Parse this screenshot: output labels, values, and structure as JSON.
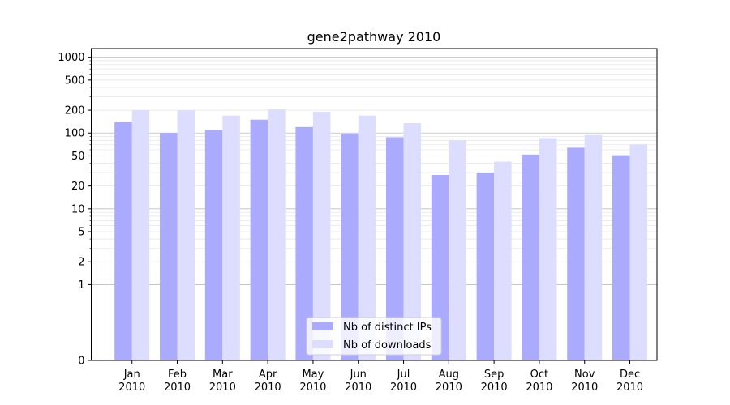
{
  "chart_data": {
    "type": "bar",
    "title": "gene2pathway 2010",
    "categories": [
      [
        "Jan",
        "2010"
      ],
      [
        "Feb",
        "2010"
      ],
      [
        "Mar",
        "2010"
      ],
      [
        "Apr",
        "2010"
      ],
      [
        "May",
        "2010"
      ],
      [
        "Jun",
        "2010"
      ],
      [
        "Jul",
        "2010"
      ],
      [
        "Aug",
        "2010"
      ],
      [
        "Sep",
        "2010"
      ],
      [
        "Oct",
        "2010"
      ],
      [
        "Nov",
        "2010"
      ],
      [
        "Dec",
        "2010"
      ]
    ],
    "series": [
      {
        "name": "Nb of distinct IPs",
        "color": "#aaaaff",
        "values": [
          140,
          100,
          110,
          150,
          120,
          98,
          88,
          28,
          30,
          52,
          64,
          51
        ]
      },
      {
        "name": "Nb of downloads",
        "color": "#ddddff",
        "values": [
          200,
          198,
          170,
          205,
          190,
          170,
          135,
          80,
          42,
          86,
          94,
          71
        ]
      }
    ],
    "xlabel": "",
    "ylabel": "",
    "yscale": "symlog",
    "ylim": [
      0,
      1300
    ],
    "yticks": [
      0,
      1,
      2,
      5,
      10,
      20,
      50,
      100,
      200,
      500,
      1000
    ],
    "grid": true,
    "legend_position": "lower-center"
  }
}
